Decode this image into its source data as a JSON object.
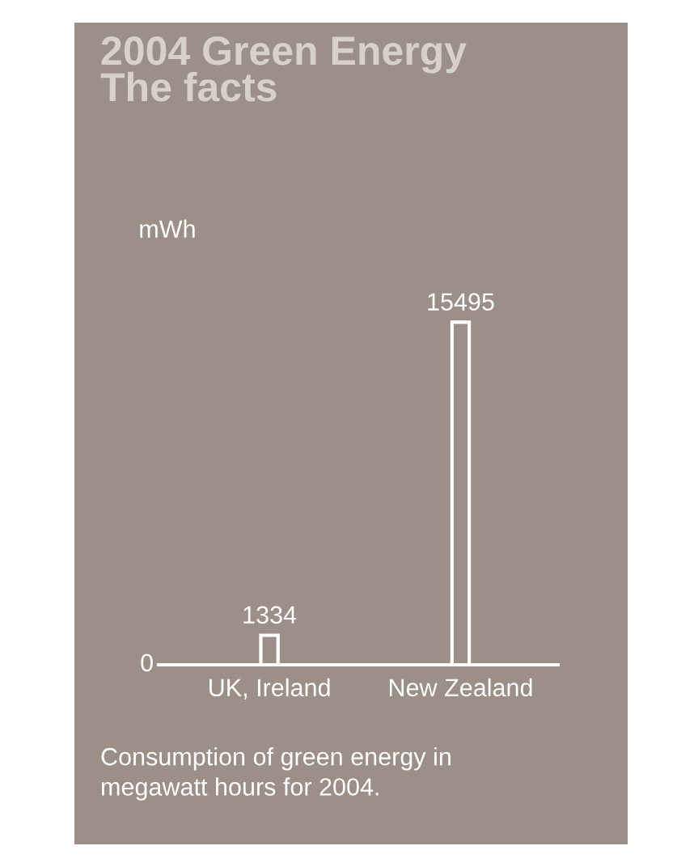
{
  "chart_data": {
    "type": "bar",
    "title": "2004 Green Energy\nThe facts",
    "ylabel": "mWh",
    "categories": [
      "UK, Ireland",
      "New Zealand"
    ],
    "values": [
      1334,
      15495
    ],
    "data_labels": true,
    "color": "#9c8f87",
    "grid": false,
    "legend": false,
    "annotations": [
      "0",
      "Consumption of green energy in\nmegawatt hours for 2004."
    ]
  }
}
